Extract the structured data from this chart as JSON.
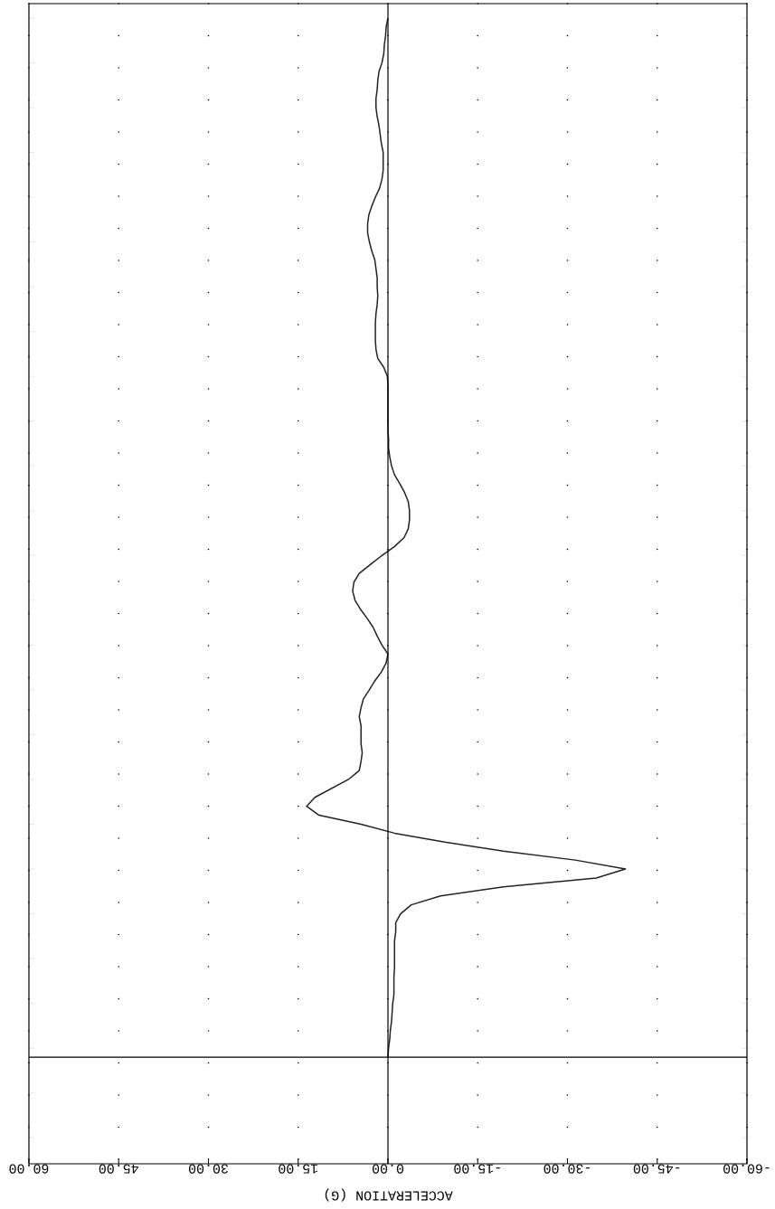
{
  "chart_data": {
    "type": "line",
    "orientation": "horizontal",
    "xlabel": "ACCELERATION (G)",
    "xlim": [
      60,
      -60
    ],
    "xticks": [
      {
        "value": 60,
        "label": "60.00"
      },
      {
        "value": 45,
        "label": "45.00"
      },
      {
        "value": 30,
        "label": "30.00"
      },
      {
        "value": 15,
        "label": "15.00"
      },
      {
        "value": 0,
        "label": "0.00"
      },
      {
        "value": -15,
        "label": "-15.00"
      },
      {
        "value": -30,
        "label": "-30.00"
      },
      {
        "value": -45,
        "label": "-45.00"
      },
      {
        "value": -60,
        "label": "-60.00"
      }
    ],
    "categories": [
      null,
      null,
      null,
      null,
      null,
      null,
      null,
      null,
      null,
      null,
      null,
      null,
      null,
      null,
      null,
      null,
      null,
      null,
      null,
      null,
      null,
      null,
      null,
      null,
      null,
      null,
      null,
      null,
      null,
      null,
      null,
      null,
      null,
      null,
      null,
      null,
      null,
      null,
      null,
      null,
      null,
      null,
      null,
      null,
      null,
      null,
      null,
      null,
      null,
      null,
      null,
      null,
      null,
      null,
      null,
      null,
      null,
      null,
      null,
      null,
      null,
      null,
      null,
      null,
      null,
      null,
      null,
      null,
      null,
      null,
      null,
      null,
      null,
      null,
      null,
      null,
      null,
      null,
      null,
      null,
      null,
      null,
      null,
      null,
      null,
      null,
      null,
      null,
      null,
      null,
      null,
      null,
      null,
      null,
      null,
      null,
      null,
      null,
      null,
      null,
      null,
      null,
      null,
      null,
      null,
      null,
      null,
      null,
      null,
      null,
      null,
      null,
      null,
      null,
      null,
      null,
      null
    ],
    "values": [
      0.0,
      0.3,
      0.4,
      0.6,
      0.7,
      1.0,
      1.5,
      1.7,
      1.8,
      2.0,
      2.0,
      1.8,
      1.5,
      1.3,
      1.1,
      0.8,
      0.8,
      0.8,
      1.0,
      1.4,
      2.1,
      2.7,
      3.2,
      3.4,
      3.4,
      3.1,
      2.7,
      2.2,
      2.0,
      1.8,
      1.8,
      1.7,
      1.8,
      2.0,
      2.1,
      2.1,
      2.1,
      2.0,
      1.7,
      0.7,
      0.1,
      0.0,
      0.0,
      0.0,
      0.0,
      0.0,
      0.0,
      -0.1,
      -0.1,
      -0.3,
      -0.6,
      -1.1,
      -2.0,
      -2.8,
      -3.4,
      -3.6,
      -3.6,
      -3.4,
      -2.7,
      -1.1,
      1.0,
      2.9,
      4.8,
      5.7,
      5.9,
      5.5,
      4.6,
      3.5,
      2.5,
      1.8,
      1.0,
      0.0,
      0.3,
      1.1,
      2.2,
      3.1,
      4.1,
      4.5,
      4.8,
      4.5,
      4.5,
      4.5,
      4.3,
      4.5,
      4.8,
      6.6,
      9.4,
      12.2,
      13.6,
      11.5,
      4.5,
      -1.1,
      -9.5,
      -19.3,
      -31.3,
      -39.7,
      -34.8,
      -19.3,
      -8.8,
      -3.9,
      -2.1,
      -1.3,
      -1.3,
      -1.1,
      -1.1,
      -1.1,
      -1.1,
      -1.0,
      -1.0,
      -1.0,
      -0.8,
      -0.7,
      -0.6,
      -0.4,
      -0.3,
      -0.1,
      0.0
    ],
    "color": "#222222",
    "marker": "none",
    "line_style": "solid",
    "grid": "x"
  }
}
